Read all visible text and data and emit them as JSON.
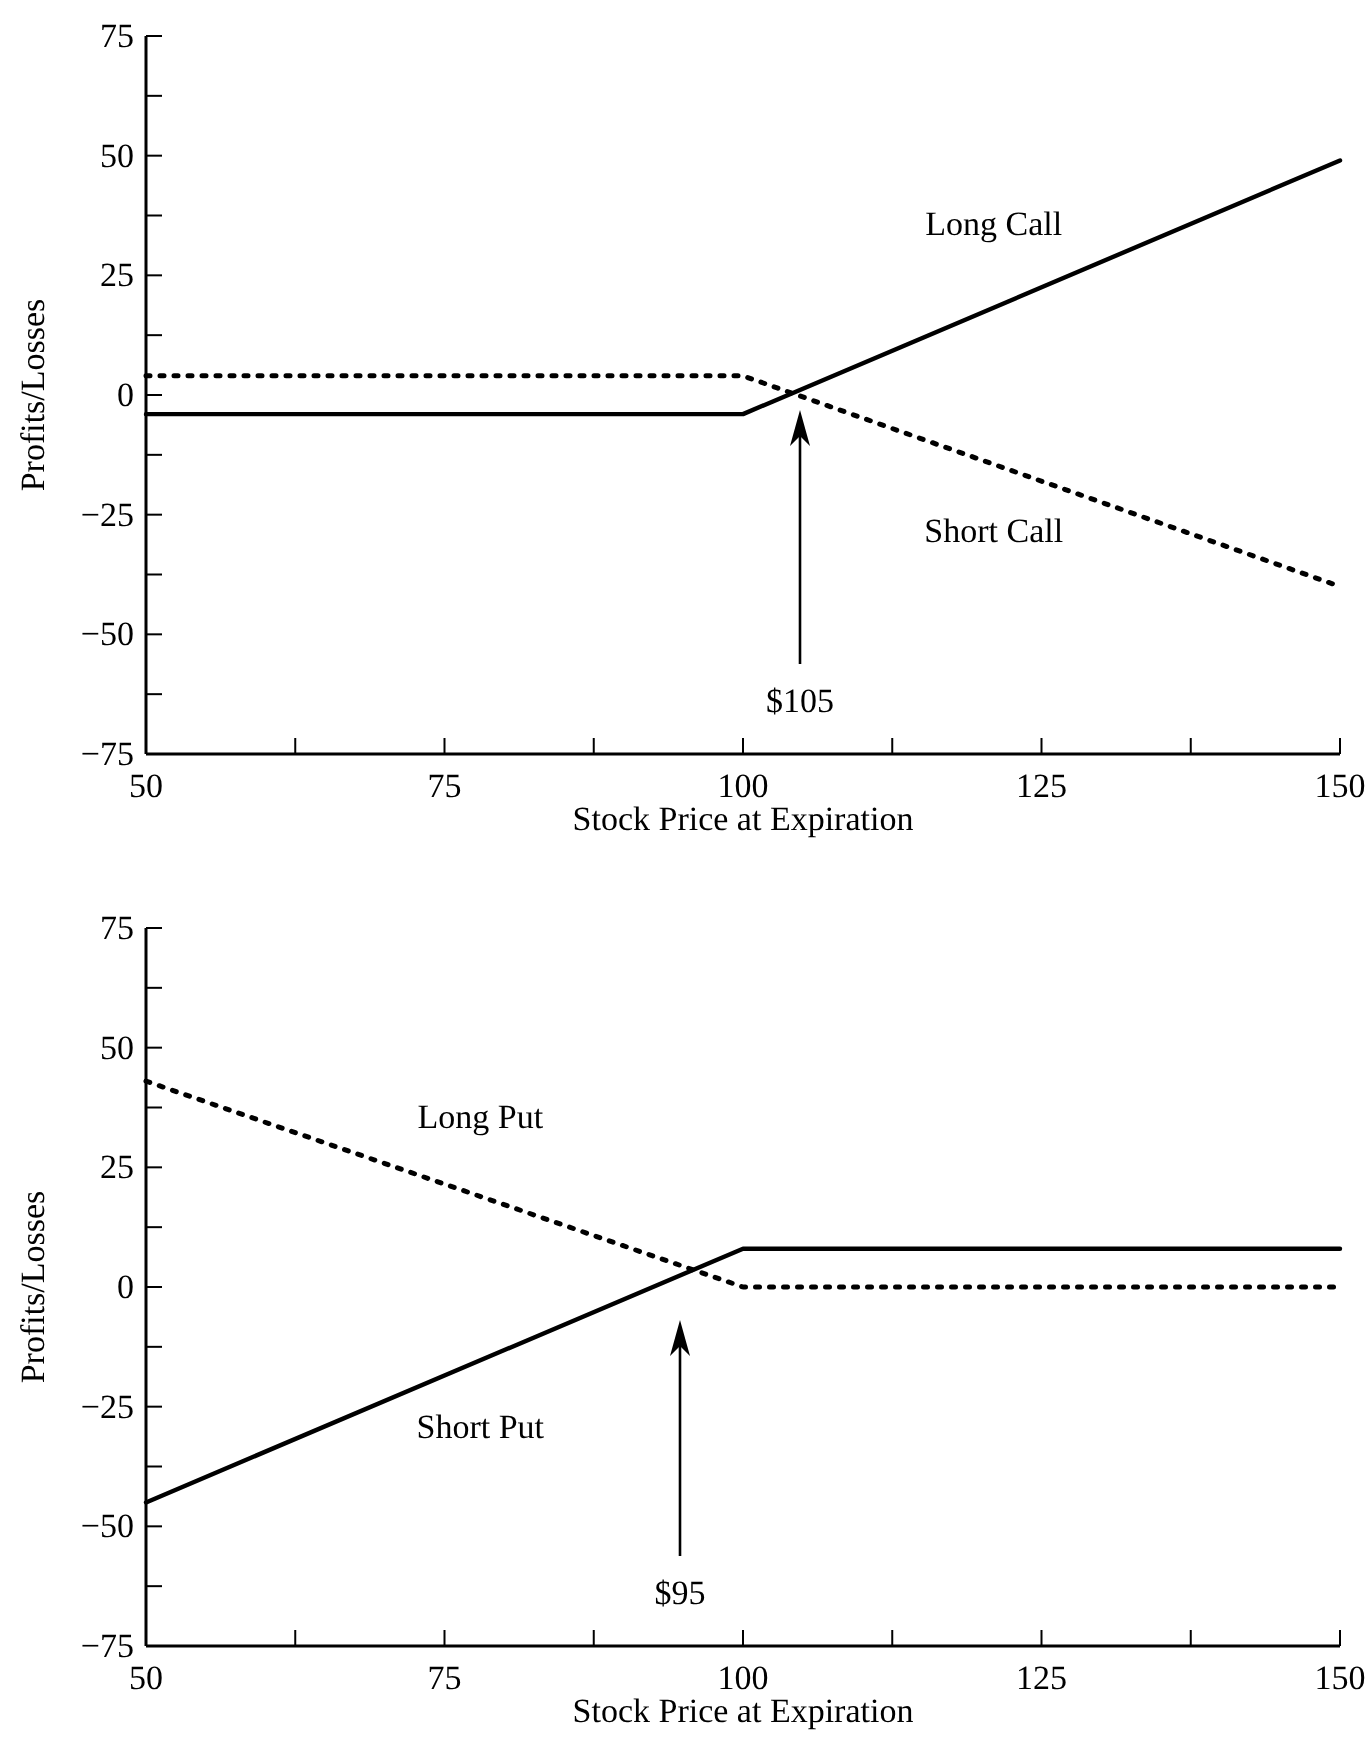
{
  "chart_data": [
    {
      "type": "line",
      "xlabel": "Stock Price at Expiration",
      "ylabel": "Profits/Losses",
      "xlim": [
        50,
        150
      ],
      "ylim": [
        -75,
        75
      ],
      "xticks": [
        50,
        {
          "value": 62.5,
          "label": null
        },
        75,
        {
          "value": 87.5,
          "label": null
        },
        100,
        {
          "value": 112.5,
          "label": null
        },
        125,
        {
          "value": 137.5,
          "label": null
        },
        150
      ],
      "yticks": [
        {
          "value": -75,
          "label": "−75"
        },
        {
          "value": -62.5,
          "label": null
        },
        {
          "value": -50,
          "label": "−50"
        },
        {
          "value": -37.5,
          "label": null
        },
        {
          "value": -25,
          "label": "−25"
        },
        {
          "value": -12.5,
          "label": null
        },
        0,
        {
          "value": 12.5,
          "label": null
        },
        25,
        {
          "value": 37.5,
          "label": null
        },
        50,
        {
          "value": 62.5,
          "label": null
        },
        75
      ],
      "grid": false,
      "series": [
        {
          "name": "Long Call",
          "color": "#000000",
          "line_style": "solid",
          "x": [
            50,
            100,
            150
          ],
          "values": [
            -4,
            -4,
            49
          ]
        },
        {
          "name": "Short Call",
          "color": "#000000",
          "line_style": "dotted",
          "x": [
            50,
            100,
            150
          ],
          "values": [
            4,
            4,
            -40
          ]
        }
      ],
      "annotations": [
        "$105"
      ]
    },
    {
      "type": "line",
      "xlabel": "Stock Price at Expiration",
      "ylabel": "Profits/Losses",
      "xlim": [
        50,
        150
      ],
      "ylim": [
        -75,
        75
      ],
      "xticks": [
        50,
        {
          "value": 62.5,
          "label": null
        },
        75,
        {
          "value": 87.5,
          "label": null
        },
        100,
        {
          "value": 112.5,
          "label": null
        },
        125,
        {
          "value": 137.5,
          "label": null
        },
        150
      ],
      "yticks": [
        {
          "value": -75,
          "label": "−75"
        },
        {
          "value": -62.5,
          "label": null
        },
        {
          "value": -50,
          "label": "−50"
        },
        {
          "value": -37.5,
          "label": null
        },
        {
          "value": -25,
          "label": "−25"
        },
        {
          "value": -12.5,
          "label": null
        },
        0,
        {
          "value": 12.5,
          "label": null
        },
        25,
        {
          "value": 37.5,
          "label": null
        },
        50,
        {
          "value": 62.5,
          "label": null
        },
        75
      ],
      "grid": false,
      "series": [
        {
          "name": "Long Put",
          "color": "#000000",
          "line_style": "dotted",
          "x": [
            50,
            100,
            150
          ],
          "values": [
            43,
            0,
            0
          ]
        },
        {
          "name": "Short Put",
          "color": "#000000",
          "line_style": "solid",
          "x": [
            50,
            100,
            150
          ],
          "values": [
            -45,
            8,
            8
          ]
        }
      ],
      "annotations": [
        "$95"
      ]
    }
  ]
}
